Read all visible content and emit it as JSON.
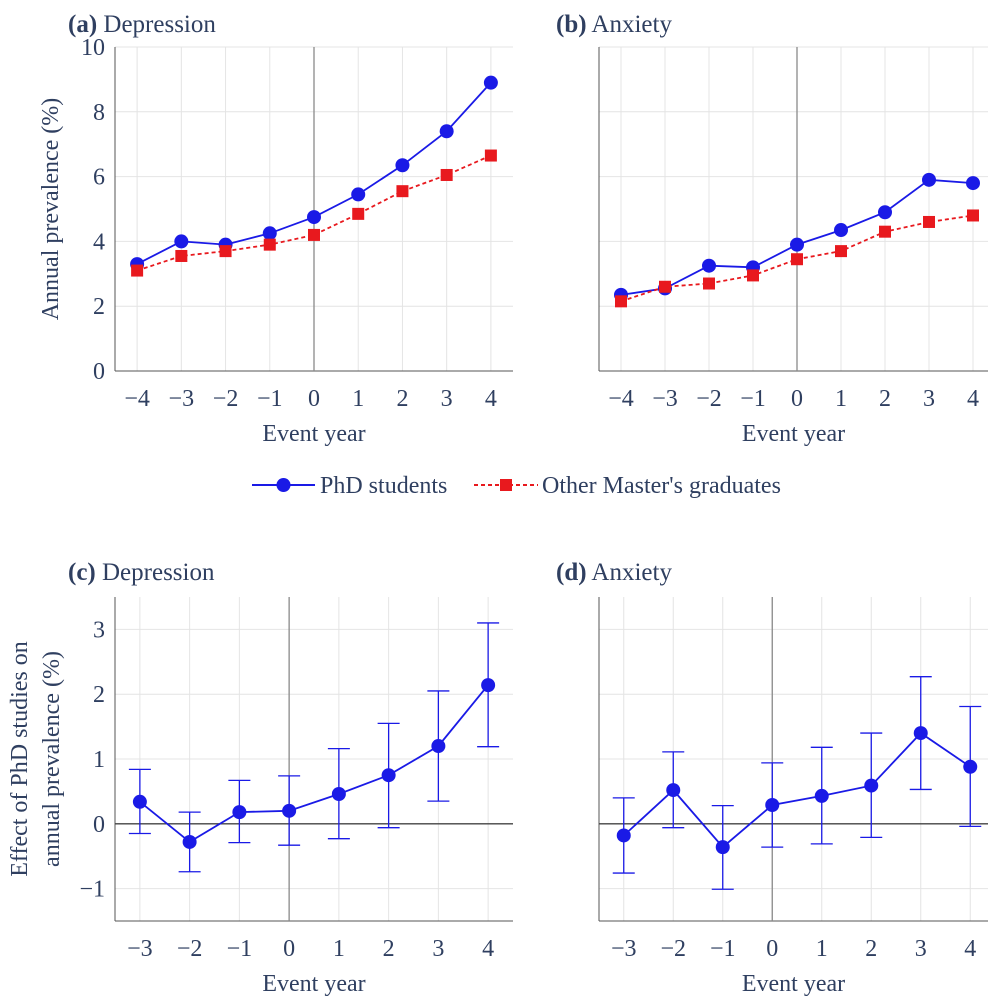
{
  "figure": {
    "legend": {
      "placement": "center, between top and bottom rows",
      "entries": [
        {
          "label": "PhD students",
          "color": "#1a1ae6",
          "marker": "circle",
          "line": "solid"
        },
        {
          "label": "Other Master's graduates",
          "color": "#e8191e",
          "marker": "square",
          "line": "dashed"
        }
      ]
    }
  },
  "chart_data": [
    {
      "type": "line",
      "panel_letter": "(a)",
      "title": "Depression",
      "xlabel": "Event year",
      "ylabel": "Annual prevalence (%)",
      "xlim": [
        -4.5,
        4.5
      ],
      "ylim": [
        0,
        10
      ],
      "yticks": [
        0,
        2,
        4,
        6,
        8,
        10
      ],
      "x": [
        -4,
        -3,
        -2,
        -1,
        0,
        1,
        2,
        3,
        4
      ],
      "vline": 0,
      "grid": true,
      "series": [
        {
          "name": "PhD students",
          "values": [
            3.3,
            4.0,
            3.9,
            4.25,
            4.75,
            5.45,
            6.35,
            7.4,
            8.9
          ]
        },
        {
          "name": "Other Master's graduates",
          "values": [
            3.1,
            3.55,
            3.7,
            3.9,
            4.2,
            4.85,
            5.55,
            6.05,
            6.65
          ]
        }
      ]
    },
    {
      "type": "line",
      "panel_letter": "(b)",
      "title": "Anxiety",
      "xlabel": "Event year",
      "ylabel": "",
      "xlim": [
        -4.5,
        4.5
      ],
      "ylim": [
        0,
        10
      ],
      "yticks": [],
      "x": [
        -4,
        -3,
        -2,
        -1,
        0,
        1,
        2,
        3,
        4
      ],
      "vline": 0,
      "grid": true,
      "series": [
        {
          "name": "PhD students",
          "values": [
            2.35,
            2.55,
            3.25,
            3.2,
            3.9,
            4.35,
            4.9,
            5.9,
            5.8
          ]
        },
        {
          "name": "Other Master's graduates",
          "values": [
            2.15,
            2.6,
            2.7,
            2.95,
            3.45,
            3.7,
            4.3,
            4.6,
            4.8
          ]
        }
      ]
    },
    {
      "type": "line",
      "panel_letter": "(c)",
      "title": "Depression",
      "xlabel": "Event year",
      "ylabel_lines": [
        "Effect of PhD studies on",
        "annual prevalence (%)"
      ],
      "xlim": [
        -3.5,
        4.5
      ],
      "ylim": [
        -1.5,
        3.5
      ],
      "yticks": [
        -1,
        0,
        1,
        2,
        3
      ],
      "x": [
        -3,
        -2,
        -1,
        0,
        1,
        2,
        3,
        4
      ],
      "vline": 0,
      "hline": 0,
      "grid": true,
      "error_bars": true,
      "series": [
        {
          "name": "",
          "values": [
            0.34,
            -0.28,
            0.18,
            0.2,
            0.46,
            0.75,
            1.2,
            2.14
          ],
          "lower": [
            -0.15,
            -0.74,
            -0.29,
            -0.33,
            -0.23,
            -0.06,
            0.35,
            1.19
          ],
          "upper": [
            0.84,
            0.18,
            0.67,
            0.74,
            1.16,
            1.55,
            2.05,
            3.1
          ]
        }
      ]
    },
    {
      "type": "line",
      "panel_letter": "(d)",
      "title": "Anxiety",
      "xlabel": "Event year",
      "ylabel": "",
      "xlim": [
        -3.5,
        4.5
      ],
      "ylim": [
        -1.5,
        3.5
      ],
      "yticks": [],
      "x": [
        -3,
        -2,
        -1,
        0,
        1,
        2,
        3,
        4
      ],
      "vline": 0,
      "hline": 0,
      "grid": true,
      "error_bars": true,
      "series": [
        {
          "name": "",
          "values": [
            -0.18,
            0.52,
            -0.36,
            0.29,
            0.43,
            0.59,
            1.4,
            0.88
          ],
          "lower": [
            -0.76,
            -0.06,
            -1.01,
            -0.36,
            -0.31,
            -0.21,
            0.53,
            -0.04
          ],
          "upper": [
            0.4,
            1.11,
            0.28,
            0.94,
            1.18,
            1.4,
            2.27,
            1.81
          ]
        }
      ]
    }
  ]
}
